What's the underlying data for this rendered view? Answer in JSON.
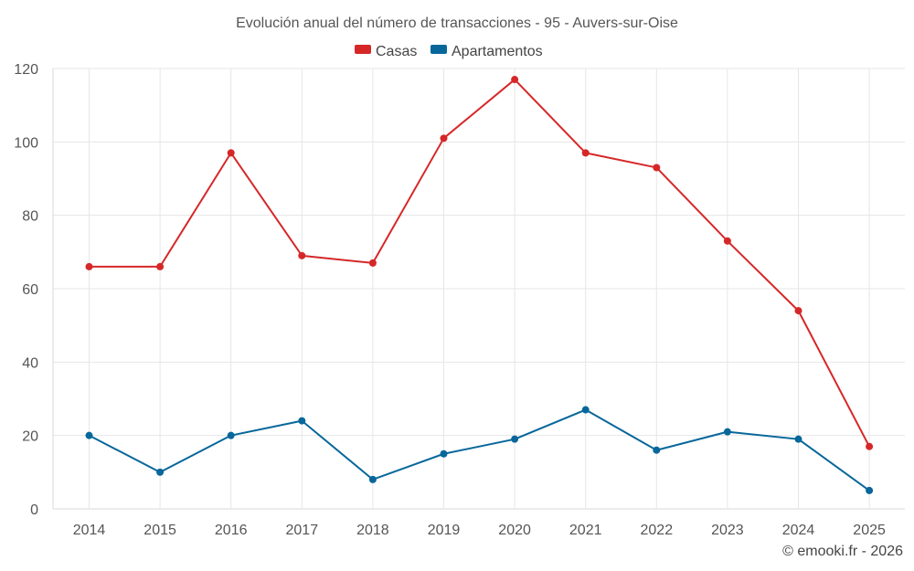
{
  "chart_data": {
    "type": "line",
    "title": "Evolución anual del número de transacciones - 95 - Auvers-sur-Oise",
    "categories": [
      "2014",
      "2015",
      "2016",
      "2017",
      "2018",
      "2019",
      "2020",
      "2021",
      "2022",
      "2023",
      "2024",
      "2025"
    ],
    "series": [
      {
        "name": "Casas",
        "color": "#d62728",
        "values": [
          66,
          66,
          97,
          69,
          67,
          101,
          117,
          97,
          93,
          73,
          54,
          17
        ]
      },
      {
        "name": "Apartamentos",
        "color": "#07679b",
        "values": [
          20,
          10,
          20,
          24,
          8,
          15,
          19,
          27,
          16,
          21,
          19,
          5
        ]
      }
    ],
    "ylim": [
      0,
      120
    ],
    "yticks": [
      0,
      20,
      40,
      60,
      80,
      100,
      120
    ],
    "xlabel": "",
    "ylabel": "",
    "grid": true,
    "legend": "top-center"
  },
  "credit": "© emooki.fr - 2026"
}
